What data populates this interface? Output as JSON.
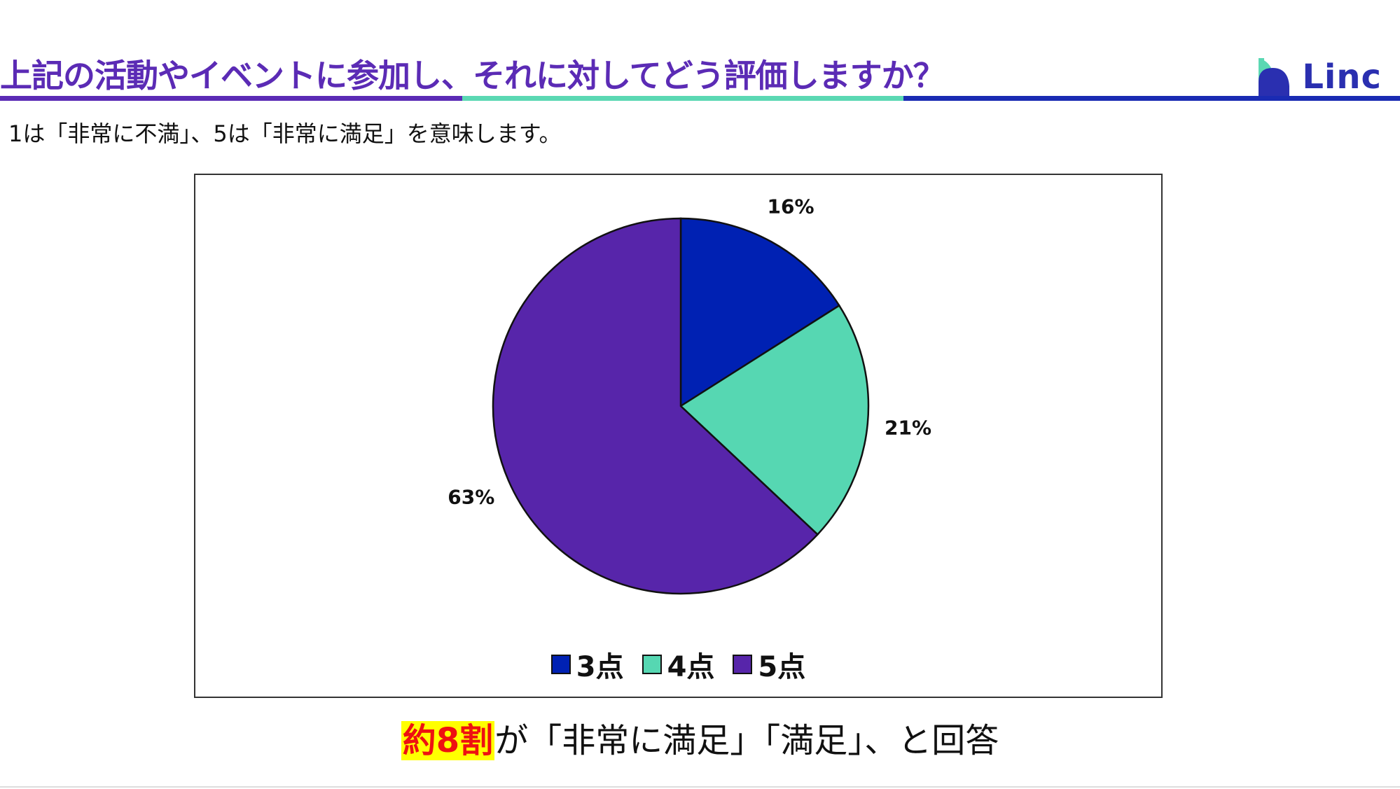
{
  "header": {
    "title": "上記の活動やイベントに参加し、それに対してどう評価しますか？",
    "logo_text": "Linc",
    "colors": {
      "title": "#5b2bb5",
      "rule_purple": "#5b2bb5",
      "rule_teal": "#5bd8b3",
      "rule_blue": "#1a2bb3"
    }
  },
  "subtitle": "1は「非常に不満」、5は「非常に満足」を意味します。",
  "chart_data": {
    "type": "pie",
    "title": "",
    "slices": [
      {
        "label": "3点",
        "value": 16,
        "display": "16%",
        "color": "#0021b3"
      },
      {
        "label": "4点",
        "value": 21,
        "display": "21%",
        "color": "#56d7b2"
      },
      {
        "label": "5点",
        "value": 63,
        "display": "63%",
        "color": "#5725aa"
      }
    ],
    "start_angle_deg": 0,
    "direction": "clockwise",
    "legend_position": "bottom"
  },
  "conclusion": {
    "highlight": "約8割",
    "rest": "が「非常に満足」「満足」、と回答"
  }
}
